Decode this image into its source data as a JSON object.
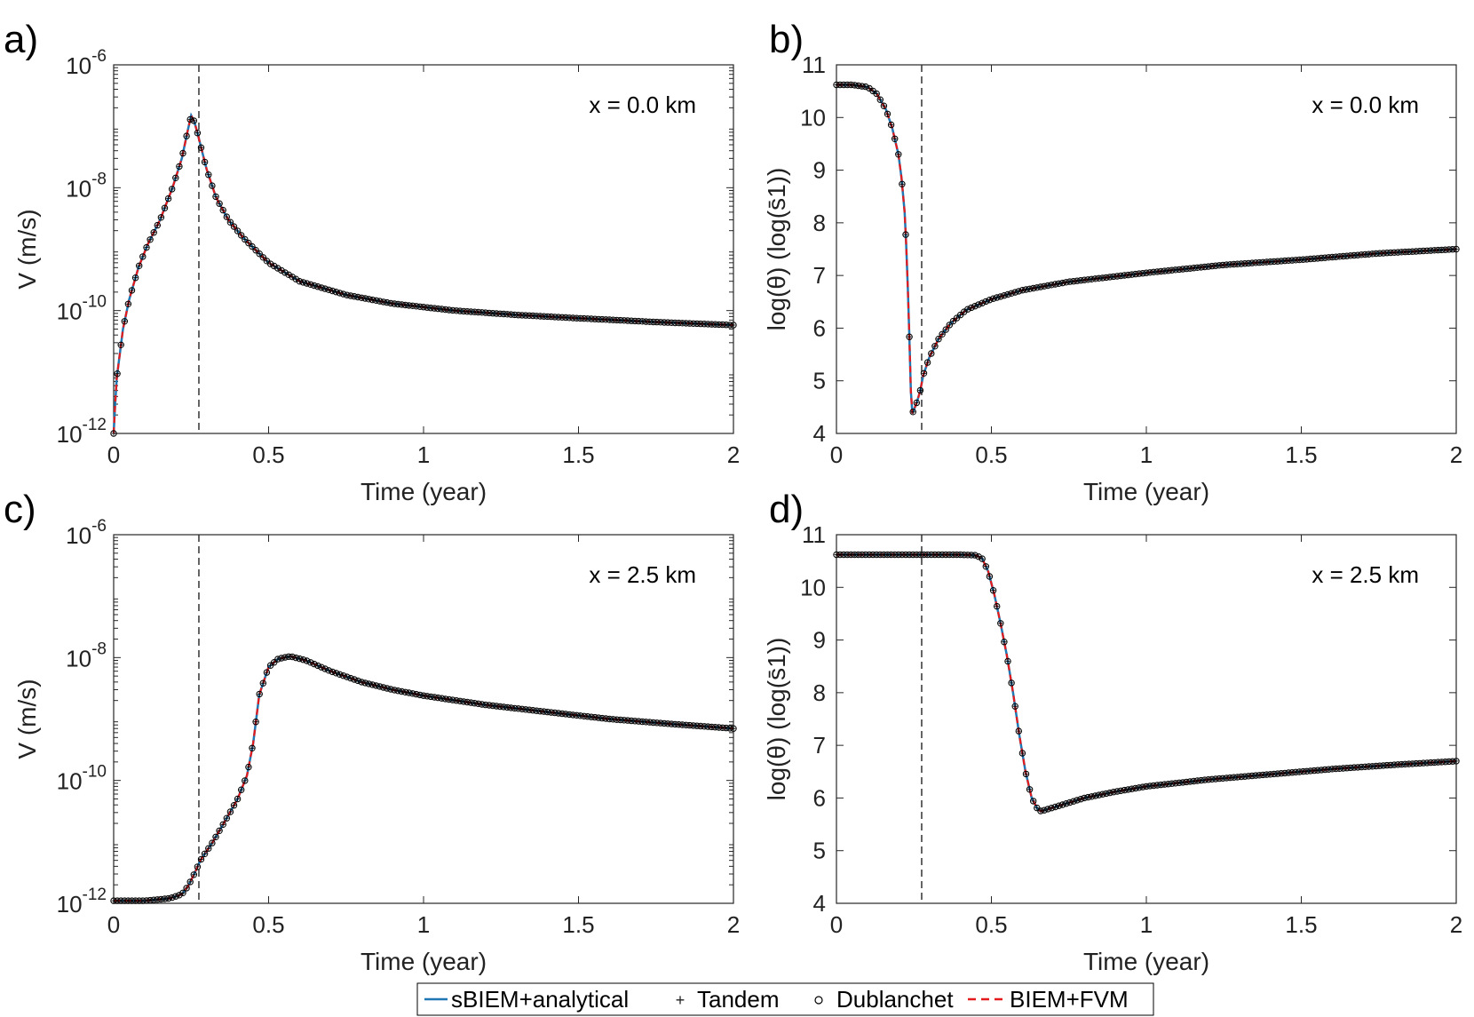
{
  "figure": {
    "legend": {
      "location": "bottom-center",
      "entries": [
        {
          "label": "sBIEM+analytical",
          "style": "solid line",
          "color": "#1f77b4"
        },
        {
          "label": "Tandem",
          "style": "plus marker",
          "color": "#000000"
        },
        {
          "label": "Dublanchet",
          "style": "circle marker",
          "color": "#000000"
        },
        {
          "label": "BIEM+FVM",
          "style": "dashed line",
          "color": "#e41a1c"
        }
      ]
    },
    "colors": {
      "sbiem": "#1f77b4",
      "biem_fvm": "#e41a1c",
      "markers": "#000000",
      "vline": "#333333"
    }
  },
  "chart_data": [
    {
      "panel": "a)",
      "type": "line",
      "yscale": "log",
      "annotation": "x = 0.0 km",
      "xlabel": "Time (year)",
      "ylabel": "V (m/s)",
      "xlim": [
        0,
        2
      ],
      "ylim": [
        1e-12,
        1e-06
      ],
      "xticks": [
        0,
        0.5,
        1,
        1.5,
        2
      ],
      "xtick_labels": [
        "0",
        "0.5",
        "1",
        "1.5",
        "2"
      ],
      "yticks": [
        1e-12,
        1e-10,
        1e-08,
        1e-06
      ],
      "ytick_labels": [
        {
          "base": "10",
          "exp": "-12"
        },
        {
          "base": "10",
          "exp": "-10"
        },
        {
          "base": "10",
          "exp": "-8"
        },
        {
          "base": "10",
          "exp": "-6"
        }
      ],
      "vline_x": 0.275,
      "series": [
        {
          "name": "sBIEM+analytical",
          "x": [
            0,
            0.005,
            0.01,
            0.02,
            0.03,
            0.05,
            0.08,
            0.11,
            0.15,
            0.19,
            0.22,
            0.24,
            0.25,
            0.26,
            0.27,
            0.28,
            0.3,
            0.33,
            0.37,
            0.42,
            0.5,
            0.6,
            0.75,
            0.9,
            1.1,
            1.3,
            1.5,
            1.75,
            2.0
          ],
          "y": [
            1e-12,
            3e-12,
            8e-12,
            2e-11,
            5e-11,
            1.5e-10,
            5e-10,
            1.2e-09,
            3e-09,
            1e-08,
            3e-08,
            9e-08,
            1.5e-07,
            1.2e-07,
            8e-08,
            5e-08,
            2e-08,
            7e-09,
            3e-09,
            1.5e-09,
            6e-10,
            3e-10,
            1.8e-10,
            1.3e-10,
            1e-10,
            8.5e-11,
            7.5e-11,
            6.5e-11,
            5.8e-11
          ]
        }
      ]
    },
    {
      "panel": "b)",
      "type": "line",
      "yscale": "linear",
      "annotation": "x = 0.0 km",
      "xlabel": "Time (year)",
      "ylabel": "log(θ)    (log(s̄1))",
      "xlim": [
        0,
        2
      ],
      "ylim": [
        4,
        11
      ],
      "xticks": [
        0,
        0.5,
        1,
        1.5,
        2
      ],
      "xtick_labels": [
        "0",
        "0.5",
        "1",
        "1.5",
        "2"
      ],
      "yticks": [
        4,
        5,
        6,
        7,
        8,
        9,
        10,
        11
      ],
      "ytick_labels": [
        "4",
        "5",
        "6",
        "7",
        "8",
        "9",
        "10",
        "11"
      ],
      "vline_x": 0.275,
      "series": [
        {
          "name": "sBIEM+analytical",
          "x": [
            0,
            0.05,
            0.1,
            0.13,
            0.16,
            0.18,
            0.2,
            0.21,
            0.22,
            0.225,
            0.23,
            0.235,
            0.24,
            0.245,
            0.25,
            0.26,
            0.27,
            0.28,
            0.3,
            0.33,
            0.37,
            0.42,
            0.5,
            0.6,
            0.75,
            1.0,
            1.25,
            1.5,
            1.75,
            2.0
          ],
          "y": [
            10.62,
            10.62,
            10.58,
            10.45,
            10.15,
            9.8,
            9.3,
            8.85,
            8.2,
            7.6,
            6.8,
            5.9,
            4.8,
            4.38,
            4.45,
            4.6,
            4.8,
            5.1,
            5.45,
            5.8,
            6.1,
            6.35,
            6.55,
            6.72,
            6.88,
            7.05,
            7.2,
            7.3,
            7.42,
            7.5
          ]
        }
      ]
    },
    {
      "panel": "c)",
      "type": "line",
      "yscale": "log",
      "annotation": "x = 2.5 km",
      "xlabel": "Time (year)",
      "ylabel": "V (m/s)",
      "xlim": [
        0,
        2
      ],
      "ylim": [
        1e-12,
        1e-06
      ],
      "xticks": [
        0,
        0.5,
        1,
        1.5,
        2
      ],
      "xtick_labels": [
        "0",
        "0.5",
        "1",
        "1.5",
        "2"
      ],
      "yticks": [
        1e-12,
        1e-10,
        1e-08,
        1e-06
      ],
      "ytick_labels": [
        {
          "base": "10",
          "exp": "-12"
        },
        {
          "base": "10",
          "exp": "-10"
        },
        {
          "base": "10",
          "exp": "-8"
        },
        {
          "base": "10",
          "exp": "-6"
        }
      ],
      "vline_x": 0.275,
      "series": [
        {
          "name": "sBIEM+analytical",
          "x": [
            0,
            0.1,
            0.18,
            0.22,
            0.24,
            0.26,
            0.28,
            0.32,
            0.36,
            0.4,
            0.43,
            0.45,
            0.47,
            0.5,
            0.53,
            0.57,
            0.62,
            0.7,
            0.8,
            0.9,
            1.0,
            1.2,
            1.4,
            1.6,
            1.8,
            2.0
          ],
          "y": [
            1.1e-12,
            1.1e-12,
            1.2e-12,
            1.4e-12,
            1.9e-12,
            3e-12,
            5e-12,
            1e-11,
            2.2e-11,
            5e-11,
            1.2e-10,
            4e-10,
            2.5e-09,
            7e-09,
            9.5e-09,
            1.05e-08,
            9e-09,
            6e-09,
            4e-09,
            3e-09,
            2.4e-09,
            1.7e-09,
            1.3e-09,
            1e-09,
            8.3e-10,
            7e-10
          ]
        }
      ]
    },
    {
      "panel": "d)",
      "type": "line",
      "yscale": "linear",
      "annotation": "x = 2.5 km",
      "xlabel": "Time (year)",
      "ylabel": "log(θ)    (log(s̄1))",
      "xlim": [
        0,
        2
      ],
      "ylim": [
        4,
        11
      ],
      "xticks": [
        0,
        0.5,
        1,
        1.5,
        2
      ],
      "xtick_labels": [
        "0",
        "0.5",
        "1",
        "1.5",
        "2"
      ],
      "yticks": [
        4,
        5,
        6,
        7,
        8,
        9,
        10,
        11
      ],
      "ytick_labels": [
        "4",
        "5",
        "6",
        "7",
        "8",
        "9",
        "10",
        "11"
      ],
      "vline_x": 0.275,
      "series": [
        {
          "name": "sBIEM+analytical",
          "x": [
            0,
            0.2,
            0.4,
            0.45,
            0.47,
            0.49,
            0.51,
            0.53,
            0.55,
            0.57,
            0.59,
            0.61,
            0.63,
            0.65,
            0.66,
            0.7,
            0.8,
            0.9,
            1.0,
            1.2,
            1.4,
            1.6,
            1.8,
            2.0
          ],
          "y": [
            10.62,
            10.62,
            10.62,
            10.61,
            10.55,
            10.3,
            9.85,
            9.3,
            8.7,
            8.0,
            7.2,
            6.5,
            6.0,
            5.78,
            5.75,
            5.82,
            6.0,
            6.12,
            6.22,
            6.35,
            6.45,
            6.55,
            6.63,
            6.7
          ]
        }
      ]
    }
  ]
}
